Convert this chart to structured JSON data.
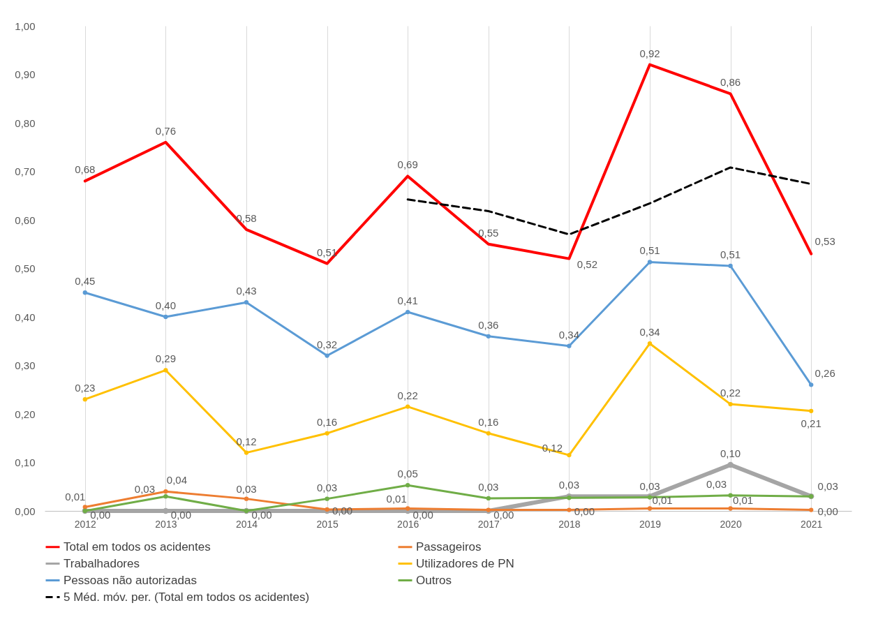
{
  "chart_data": {
    "type": "line",
    "categories": [
      "2012",
      "2013",
      "2014",
      "2015",
      "2016",
      "2017",
      "2018",
      "2019",
      "2020",
      "2021"
    ],
    "ylim": [
      0,
      1
    ],
    "yticks": [
      {
        "value": 0,
        "label": "0,00"
      },
      {
        "value": 0.1,
        "label": "0,10"
      },
      {
        "value": 0.2,
        "label": "0,20"
      },
      {
        "value": 0.3,
        "label": "0,30"
      },
      {
        "value": 0.4,
        "label": "0,40"
      },
      {
        "value": 0.5,
        "label": "0,50"
      },
      {
        "value": 0.6,
        "label": "0,60"
      },
      {
        "value": 0.7,
        "label": "0,70"
      },
      {
        "value": 0.8,
        "label": "0,80"
      },
      {
        "value": 0.9,
        "label": "0,90"
      },
      {
        "value": 1,
        "label": "1,00"
      }
    ],
    "grid": "x",
    "legend": "bottom",
    "marker": "circle",
    "series": [
      {
        "name": "Total em todos os acidentes",
        "color": "#ff0000",
        "marker": "none",
        "values": [
          0.68,
          0.76,
          0.58,
          0.51,
          0.69,
          0.55,
          0.52,
          0.92,
          0.86,
          0.53
        ],
        "value_labels": [
          "0,68",
          "0,76",
          "0,58",
          "0,51",
          "0,69",
          "0,55",
          "0,52",
          "0,92",
          "0,86",
          "0,53"
        ]
      },
      {
        "name": "Passageiros",
        "color": "#ed7d31",
        "values": [
          0.008,
          0.04,
          0.025,
          0.003,
          0.005,
          0.002,
          0.002,
          0.005,
          0.005,
          0.002
        ],
        "value_labels": [
          "0,01",
          "0,04",
          "0,03",
          "0,00",
          "0,01",
          null,
          "0,00",
          "0,01",
          "0,01",
          "0,00"
        ]
      },
      {
        "name": "Trabalhadores",
        "color": "#a5a5a5",
        "values": [
          0,
          0,
          0,
          0,
          0,
          0,
          0.03,
          0.03,
          0.095,
          0.03
        ],
        "value_labels": [
          "0,00",
          "0,00",
          null,
          null,
          "0,00",
          "0,00",
          "0,03",
          null,
          "0,10",
          "0,03"
        ]
      },
      {
        "name": "Utilizadores de PN",
        "color": "#ffc000",
        "values": [
          0.23,
          0.29,
          0.12,
          0.16,
          0.215,
          0.16,
          0.115,
          0.345,
          0.22,
          0.206
        ],
        "value_labels": [
          "0,23",
          "0,29",
          "0,12",
          "0,16",
          "0,22",
          "0,16",
          "0,12",
          "0,34",
          "0,22",
          "0,21"
        ]
      },
      {
        "name": "Pessoas não autorizadas",
        "color": "#5b9bd5",
        "values": [
          0.45,
          0.4,
          0.43,
          0.32,
          0.41,
          0.36,
          0.34,
          0.513,
          0.505,
          0.26
        ],
        "value_labels": [
          "0,45",
          "0,40",
          "0,43",
          "0,32",
          "0,41",
          "0,36",
          "0,34",
          "0,51",
          "0,51",
          "0,26"
        ]
      },
      {
        "name": "Outros",
        "color": "#70ad47",
        "values": [
          0,
          0.03,
          0,
          0.025,
          0.053,
          0.026,
          0.027,
          0.028,
          0.032,
          0.03
        ],
        "value_labels": [
          null,
          "0,03",
          "0,00",
          "0,03",
          "0,05",
          "0,03",
          null,
          "0,03",
          "0,03",
          null
        ]
      },
      {
        "name": "5 Méd. móv. per. (Total em todos os acidentes)",
        "color": "#000000",
        "marker": "none",
        "line_style": "dashed",
        "values": [
          null,
          null,
          null,
          null,
          0.642,
          0.618,
          0.57,
          0.634,
          0.708,
          0.674
        ]
      }
    ]
  }
}
